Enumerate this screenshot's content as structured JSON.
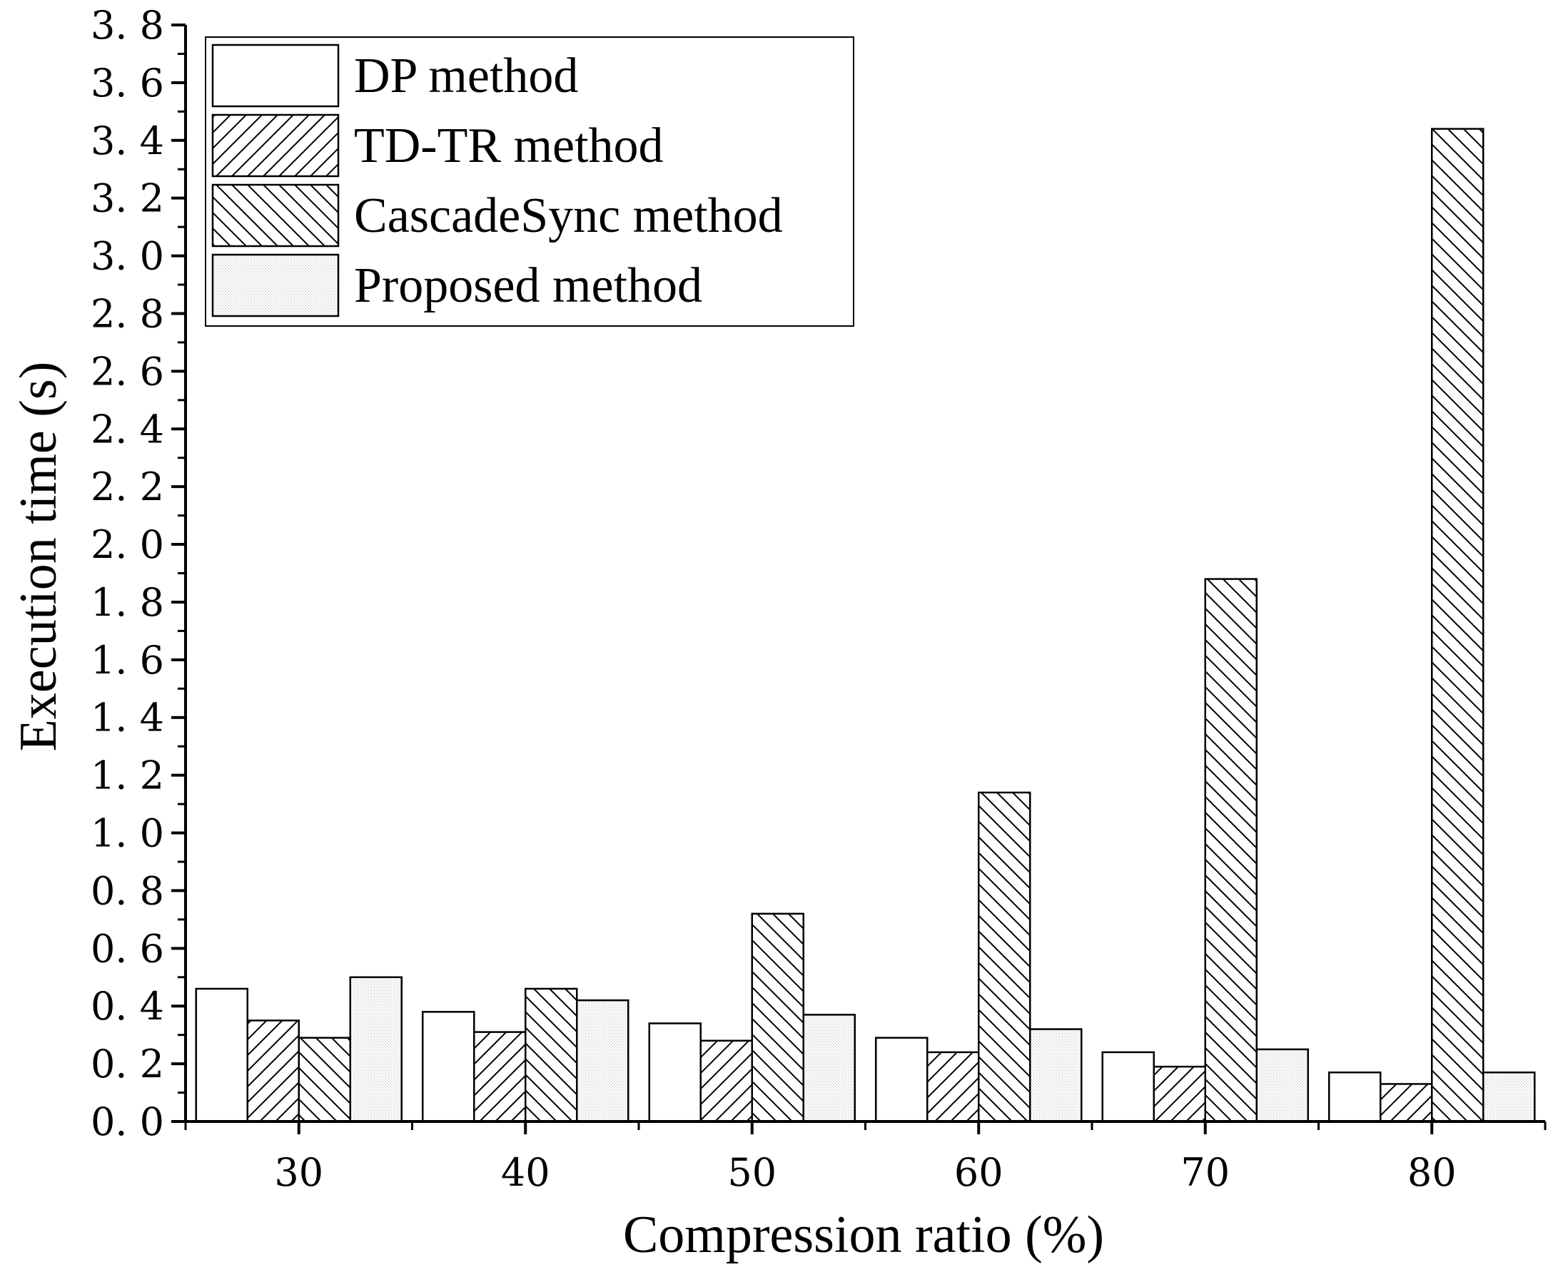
{
  "chart_data": {
    "type": "bar",
    "title": "",
    "xlabel": "Compression ratio (%)",
    "ylabel": "Execution time (s)",
    "categories": [
      "30",
      "40",
      "50",
      "60",
      "70",
      "80"
    ],
    "ylim": [
      0,
      3.8
    ],
    "yticks": [
      "0. 0",
      "0. 2",
      "0. 4",
      "0. 6",
      "0. 8",
      "1. 0",
      "1. 2",
      "1. 4",
      "1. 6",
      "1. 8",
      "2. 0",
      "2. 2",
      "2. 4",
      "2. 6",
      "2. 8",
      "3. 0",
      "3. 2",
      "3. 4",
      "3. 6",
      "3. 8"
    ],
    "legend_position": "top-left",
    "grid": false,
    "series": [
      {
        "name": "DP method",
        "pattern": "none",
        "values": [
          0.46,
          0.38,
          0.34,
          0.29,
          0.24,
          0.17
        ]
      },
      {
        "name": "TD-TR method",
        "pattern": "forward-hatch",
        "values": [
          0.35,
          0.31,
          0.28,
          0.24,
          0.19,
          0.13
        ]
      },
      {
        "name": "CascadeSync method",
        "pattern": "back-hatch",
        "values": [
          0.29,
          0.46,
          0.72,
          1.14,
          1.88,
          3.44
        ]
      },
      {
        "name": "Proposed method",
        "pattern": "dots",
        "values": [
          0.5,
          0.42,
          0.37,
          0.32,
          0.25,
          0.17
        ]
      }
    ]
  }
}
